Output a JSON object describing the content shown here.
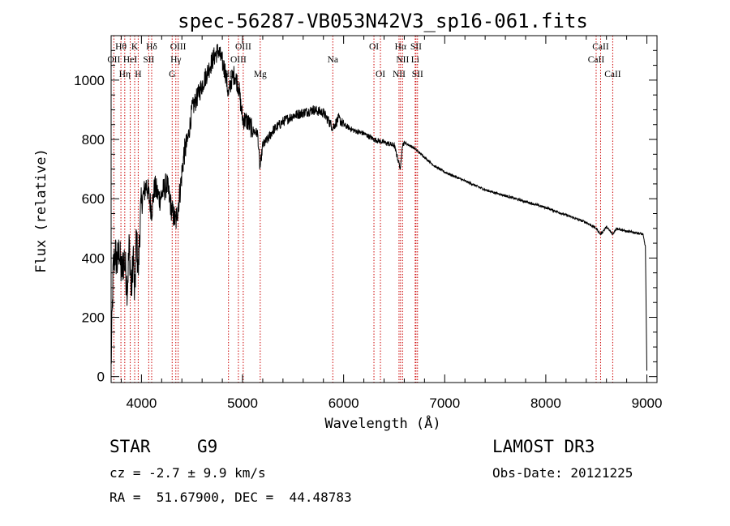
{
  "chart_data": {
    "type": "line",
    "title": "spec-56287-VB053N42V3_sp16-061.fits",
    "xlabel": "Wavelength (Å)",
    "ylabel": "Flux (relative)",
    "xlim": [
      3700,
      9100
    ],
    "ylim": [
      -20,
      1150
    ],
    "xticks": [
      4000,
      5000,
      6000,
      7000,
      8000,
      9000
    ],
    "yticks": [
      0,
      200,
      400,
      600,
      800,
      1000
    ],
    "grid": false,
    "spectrum_anchors": {
      "x": [
        3700,
        3720,
        3740,
        3760,
        3780,
        3800,
        3830,
        3860,
        3880,
        3900,
        3920,
        3933,
        3950,
        3968,
        3990,
        4010,
        4050,
        4101,
        4130,
        4180,
        4250,
        4300,
        4340,
        4380,
        4420,
        4460,
        4500,
        4560,
        4620,
        4680,
        4720,
        4760,
        4800,
        4830,
        4861,
        4890,
        4920,
        4960,
        5000,
        5050,
        5100,
        5150,
        5172,
        5200,
        5250,
        5300,
        5400,
        5500,
        5600,
        5700,
        5800,
        5893,
        5950,
        6000,
        6100,
        6200,
        6300,
        6400,
        6500,
        6563,
        6580,
        6600,
        6700,
        6800,
        6900,
        7000,
        7200,
        7400,
        7600,
        7800,
        8000,
        8200,
        8400,
        8498,
        8542,
        8600,
        8662,
        8700,
        8800,
        8900,
        8960,
        8985,
        9000
      ],
      "y": [
        30,
        360,
        420,
        380,
        430,
        350,
        400,
        300,
        450,
        280,
        420,
        250,
        480,
        350,
        550,
        600,
        650,
        560,
        640,
        600,
        650,
        560,
        520,
        620,
        750,
        800,
        900,
        950,
        1000,
        1050,
        1080,
        1100,
        1060,
        1030,
        950,
        1000,
        1020,
        980,
        870,
        860,
        830,
        820,
        700,
        780,
        800,
        830,
        860,
        880,
        890,
        900,
        890,
        840,
        870,
        850,
        830,
        820,
        800,
        790,
        780,
        700,
        780,
        790,
        770,
        740,
        710,
        690,
        660,
        630,
        610,
        590,
        570,
        545,
        520,
        500,
        480,
        505,
        480,
        500,
        490,
        485,
        480,
        440,
        20
      ]
    },
    "lines": [
      {
        "label": "OII",
        "wavelength": 3727,
        "row": 2
      },
      {
        "label": "Hθ",
        "wavelength": 3797,
        "row": 1
      },
      {
        "label": "Hη",
        "wavelength": 3835,
        "row": 3
      },
      {
        "label": "HeI",
        "wavelength": 3889,
        "row": 2
      },
      {
        "label": "K",
        "wavelength": 3933,
        "row": 1
      },
      {
        "label": "H",
        "wavelength": 3968,
        "row": 3
      },
      {
        "label": "SII",
        "wavelength": 4072,
        "row": 2
      },
      {
        "label": "Hδ",
        "wavelength": 4101,
        "row": 1
      },
      {
        "label": "G",
        "wavelength": 4304,
        "row": 3
      },
      {
        "label": "Hγ",
        "wavelength": 4340,
        "row": 2
      },
      {
        "label": "OIII",
        "wavelength": 4363,
        "row": 1
      },
      {
        "label": "Hβ",
        "wavelength": 4861,
        "row": 3
      },
      {
        "label": "OIII",
        "wavelength": 4959,
        "row": 2
      },
      {
        "label": "OIII",
        "wavelength": 5007,
        "row": 1
      },
      {
        "label": "Mg",
        "wavelength": 5175,
        "row": 3
      },
      {
        "label": "Na",
        "wavelength": 5893,
        "row": 2
      },
      {
        "label": "OI",
        "wavelength": 6300,
        "row": 1
      },
      {
        "label": "OI",
        "wavelength": 6364,
        "row": 3
      },
      {
        "label": "NII",
        "wavelength": 6548,
        "row": 3
      },
      {
        "label": "Hα",
        "wavelength": 6563,
        "row": 1
      },
      {
        "label": "NII",
        "wavelength": 6583,
        "row": 2
      },
      {
        "label": "SII",
        "wavelength": 6716,
        "row": 1
      },
      {
        "label": "Li",
        "wavelength": 6708,
        "row": 2
      },
      {
        "label": "SII",
        "wavelength": 6731,
        "row": 3
      },
      {
        "label": "CaII",
        "wavelength": 8498,
        "row": 2
      },
      {
        "label": "CaII",
        "wavelength": 8542,
        "row": 1
      },
      {
        "label": "CaII",
        "wavelength": 8662,
        "row": 3
      }
    ]
  },
  "info": {
    "class_label": "STAR",
    "subclass": "G9",
    "survey": "LAMOST DR3",
    "cz": "cz = -2.7 ± 9.9 km/s",
    "obs_date": "Obs-Date: 20121225",
    "coords": "RA =  51.67900, DEC =  44.48783"
  },
  "colors": {
    "line_marker": "#cc0000",
    "spectrum": "#000000",
    "axes": "#000000"
  }
}
